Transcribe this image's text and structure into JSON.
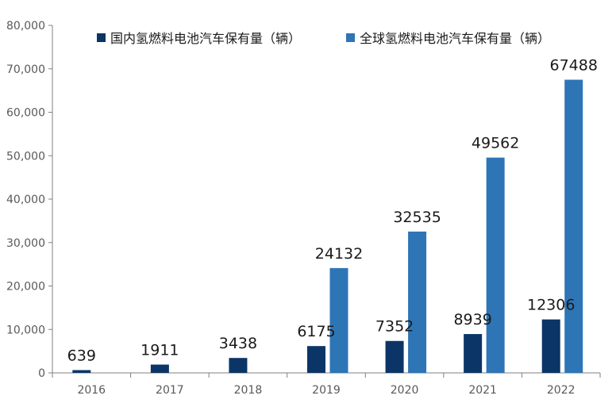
{
  "chart_data": {
    "type": "bar",
    "title": "",
    "xlabel": "",
    "ylabel": "",
    "categories": [
      "2016",
      "2017",
      "2018",
      "2019",
      "2020",
      "2021",
      "2022"
    ],
    "ylim": [
      0,
      80000
    ],
    "yticks": [
      0,
      10000,
      20000,
      30000,
      40000,
      50000,
      60000,
      70000,
      80000
    ],
    "ytick_labels": [
      "0",
      "10,000",
      "20,000",
      "30,000",
      "40,000",
      "50,000",
      "60,000",
      "70,000",
      "80,000"
    ],
    "grid": false,
    "legend_position": "top",
    "series": [
      {
        "name": "国内氢燃料电池汽车保有量（辆）",
        "color": "#0b3566",
        "values": [
          639,
          1911,
          3438,
          6175,
          7352,
          8939,
          12306
        ],
        "labels": [
          "639",
          "1911",
          "3438",
          "6175",
          "7352",
          "8939",
          "12306"
        ]
      },
      {
        "name": "全球氢燃料电池汽车保有量（辆）",
        "color": "#2e75b6",
        "values": [
          null,
          null,
          null,
          24132,
          32535,
          49562,
          67488
        ],
        "labels": [
          null,
          null,
          null,
          "24132",
          "32535",
          "49562",
          "67488"
        ]
      }
    ]
  }
}
